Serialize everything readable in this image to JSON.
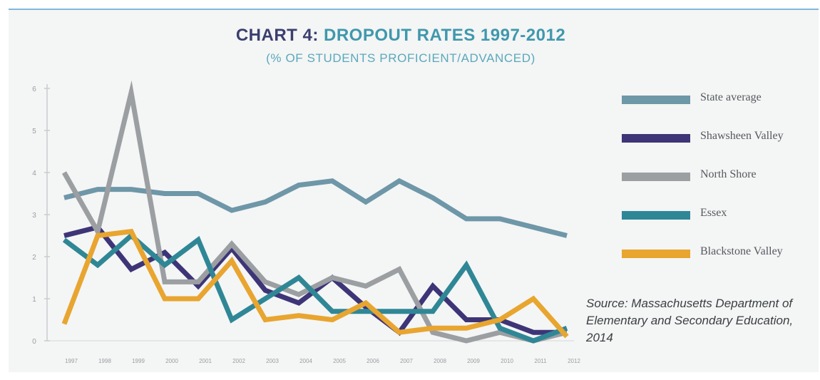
{
  "title": {
    "prefix": "CHART 4:",
    "main": "DROPOUT RATES 1997-2012"
  },
  "subtitle": "(% OF STUDENTS PROFICIENT/ADVANCED)",
  "source": "Source: Massachusetts Department of Elementary and Secondary Education, 2014",
  "chart_data": {
    "type": "line",
    "title": "CHART 4: DROPOUT RATES 1997-2012",
    "subtitle": "(% OF STUDENTS PROFICIENT/ADVANCED)",
    "categories": [
      "1997",
      "1998",
      "1999",
      "2000",
      "2001",
      "2002",
      "2003",
      "2004",
      "2005",
      "2006",
      "2007",
      "2008",
      "2009",
      "2010",
      "2011",
      "2012"
    ],
    "yticks": [
      "0",
      "1",
      "2",
      "3",
      "4",
      "5",
      "6"
    ],
    "ylim": [
      0,
      6
    ],
    "legend_position": "right",
    "grid": false,
    "series": [
      {
        "name": "State average",
        "color": "#6e97a8",
        "values": [
          3.4,
          3.6,
          3.6,
          3.5,
          3.5,
          3.1,
          3.3,
          3.7,
          3.8,
          3.3,
          3.8,
          3.4,
          2.9,
          2.9,
          2.7,
          2.5
        ]
      },
      {
        "name": "Shawsheen Valley",
        "color": "#3d3577",
        "values": [
          2.5,
          2.7,
          1.7,
          2.1,
          1.3,
          2.2,
          1.2,
          0.9,
          1.5,
          0.8,
          0.2,
          1.3,
          0.5,
          0.5,
          0.2,
          0.2
        ]
      },
      {
        "name": "North Shore",
        "color": "#9c9fa2",
        "values": [
          4.0,
          2.6,
          5.9,
          1.4,
          1.4,
          2.3,
          1.4,
          1.1,
          1.5,
          1.3,
          1.7,
          0.2,
          0.0,
          0.2,
          0.0,
          0.2
        ]
      },
      {
        "name": "Essex",
        "color": "#2f8796",
        "values": [
          2.4,
          1.8,
          2.5,
          1.8,
          2.4,
          0.5,
          1.0,
          1.5,
          0.7,
          0.7,
          0.7,
          0.7,
          1.8,
          0.3,
          0.0,
          0.3
        ]
      },
      {
        "name": "Blackstone Valley",
        "color": "#e8a52f",
        "values": [
          0.4,
          2.5,
          2.6,
          1.0,
          1.0,
          1.9,
          0.5,
          0.6,
          0.5,
          0.9,
          0.2,
          0.3,
          0.3,
          0.5,
          1.0,
          0.1
        ]
      }
    ]
  }
}
